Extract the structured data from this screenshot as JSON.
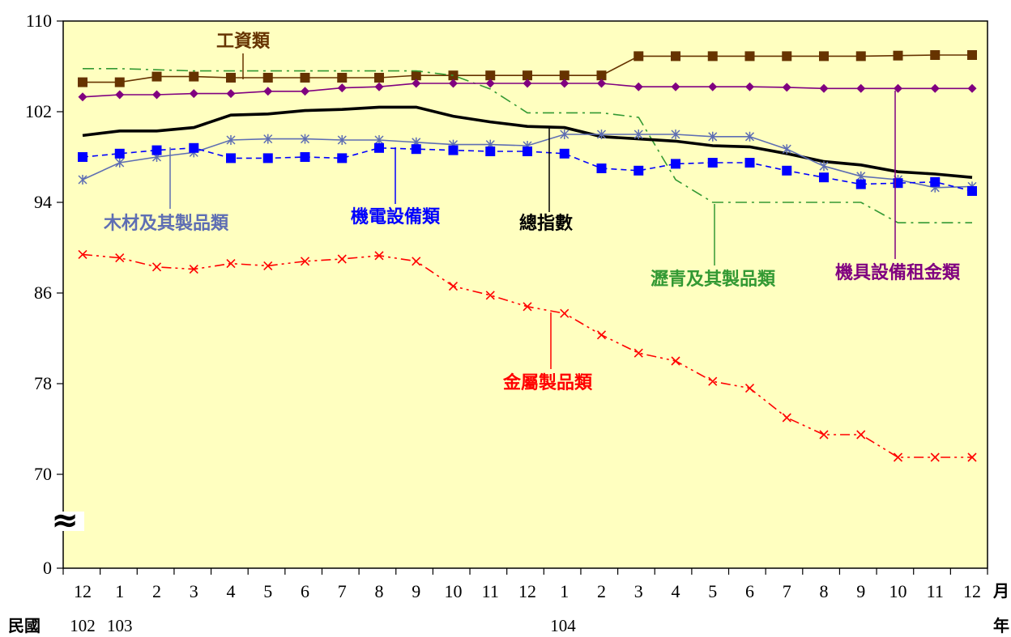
{
  "chart_data": {
    "type": "line",
    "categories": [
      "12",
      "1",
      "2",
      "3",
      "4",
      "5",
      "6",
      "7",
      "8",
      "9",
      "10",
      "11",
      "12",
      "1",
      "2",
      "3",
      "4",
      "5",
      "6",
      "7",
      "8",
      "9",
      "10",
      "11",
      "12"
    ],
    "years": [
      {
        "label": "102",
        "at_index": 0
      },
      {
        "label": "103",
        "at_index": 1
      },
      {
        "label": "104",
        "at_index": 13
      }
    ],
    "era_label": "民國",
    "month_unit": "月",
    "year_unit": "年",
    "y_ticks": [
      "110",
      "102",
      "94",
      "86",
      "78",
      "70",
      "0"
    ],
    "ylim": [
      62,
      110
    ],
    "axis_break": true,
    "axis_break_symbol": "≈",
    "grid": false,
    "series": [
      {
        "name": "工資類",
        "color": "#663300",
        "marker": "square",
        "dash": "solid",
        "values": [
          104.6,
          104.6,
          105.1,
          105.1,
          105.0,
          105.0,
          105.0,
          105.0,
          105.0,
          105.2,
          105.2,
          105.2,
          105.2,
          105.2,
          105.2,
          106.9,
          106.9,
          106.9,
          106.9,
          106.9,
          106.9,
          106.9,
          106.95,
          107.0,
          107.0
        ]
      },
      {
        "name": "瀝青及其製品類",
        "color": "#339933",
        "marker": "none",
        "dash": "dashdot",
        "values": [
          105.8,
          105.8,
          105.7,
          105.6,
          105.6,
          105.6,
          105.6,
          105.6,
          105.6,
          105.6,
          105.2,
          104.0,
          101.9,
          101.9,
          101.9,
          101.5,
          96.0,
          94.0,
          94.0,
          94.0,
          94.0,
          94.0,
          92.2,
          92.2,
          92.2
        ]
      },
      {
        "name": "機具設備租金類",
        "color": "#800080",
        "marker": "diamond",
        "dash": "solid",
        "values": [
          103.3,
          103.5,
          103.5,
          103.6,
          103.6,
          103.8,
          103.8,
          104.1,
          104.2,
          104.5,
          104.5,
          104.5,
          104.5,
          104.5,
          104.5,
          104.2,
          104.2,
          104.2,
          104.2,
          104.15,
          104.05,
          104.05,
          104.05,
          104.05,
          104.05
        ]
      },
      {
        "name": "總指數",
        "color": "#000000",
        "marker": "none",
        "dash": "solid",
        "bold": true,
        "values": [
          99.9,
          100.3,
          100.3,
          100.6,
          101.7,
          101.8,
          102.1,
          102.2,
          102.4,
          102.4,
          101.6,
          101.1,
          100.7,
          100.6,
          99.8,
          99.6,
          99.4,
          99.0,
          98.9,
          98.3,
          97.6,
          97.3,
          96.7,
          96.5,
          96.2
        ]
      },
      {
        "name": "木材及其製品類",
        "color": "#5E6EB3",
        "marker": "star",
        "dash": "solid",
        "values": [
          96.0,
          97.5,
          98.0,
          98.4,
          99.5,
          99.6,
          99.6,
          99.5,
          99.5,
          99.3,
          99.1,
          99.1,
          99.0,
          100.0,
          100.0,
          100.0,
          100.0,
          99.8,
          99.8,
          98.7,
          97.2,
          96.3,
          96.0,
          95.3,
          95.4
        ]
      },
      {
        "name": "機電設備類",
        "color": "#0000FF",
        "marker": "square",
        "dash": "dashed",
        "values": [
          98.0,
          98.3,
          98.6,
          98.8,
          97.9,
          97.9,
          98.0,
          97.9,
          98.8,
          98.7,
          98.6,
          98.5,
          98.5,
          98.3,
          97.0,
          96.8,
          97.4,
          97.5,
          97.5,
          96.8,
          96.2,
          95.6,
          95.7,
          95.8,
          95.0
        ]
      },
      {
        "name": "金屬製品類",
        "color": "#FF0000",
        "marker": "x",
        "dash": "dashdotdot",
        "values": [
          89.4,
          89.1,
          88.3,
          88.1,
          88.6,
          88.4,
          88.8,
          89.0,
          89.3,
          88.8,
          86.6,
          85.8,
          84.8,
          84.2,
          82.3,
          80.7,
          80.0,
          78.2,
          77.6,
          75.0,
          73.5,
          73.5,
          71.5,
          71.5,
          71.5
        ]
      }
    ]
  }
}
